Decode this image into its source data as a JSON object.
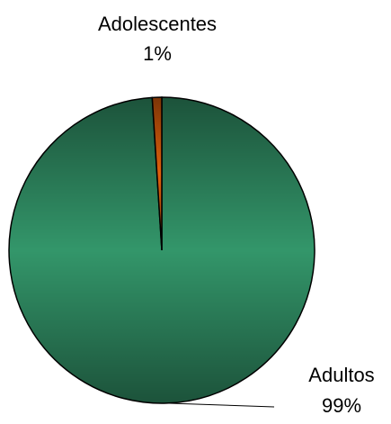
{
  "chart_data": {
    "type": "pie",
    "categories": [
      "Adultos",
      "Adolescentes"
    ],
    "values": [
      99,
      1
    ],
    "value_labels": [
      "99%",
      "1%"
    ],
    "colors": [
      "#33966a",
      "#e0600c"
    ]
  }
}
